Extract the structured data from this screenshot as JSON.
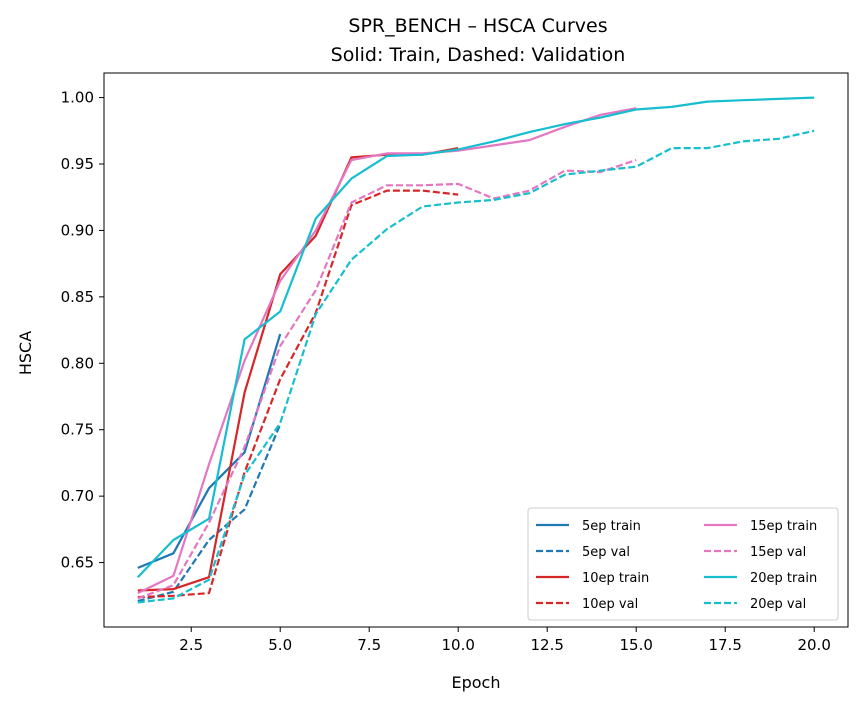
{
  "chart_data": {
    "type": "line",
    "title": "SPR_BENCH – HSCA Curves",
    "subtitle": "Solid: Train, Dashed: Validation",
    "xlabel": "Epoch",
    "ylabel": "HSCA",
    "xlim": [
      0.05,
      20.95
    ],
    "ylim": [
      0.6015,
      1.0185
    ],
    "xticks": [
      2.5,
      5.0,
      7.5,
      10.0,
      12.5,
      15.0,
      17.5,
      20.0
    ],
    "xtick_labels": [
      "2.5",
      "5.0",
      "7.5",
      "10.0",
      "12.5",
      "15.0",
      "17.5",
      "20.0"
    ],
    "yticks": [
      0.65,
      0.7,
      0.75,
      0.8,
      0.85,
      0.9,
      0.95,
      1.0
    ],
    "ytick_labels": [
      "0.65",
      "0.70",
      "0.75",
      "0.80",
      "0.85",
      "0.90",
      "0.95",
      "1.00"
    ],
    "grid": false,
    "legend_position": "bottom-right",
    "series": [
      {
        "name": "5ep train",
        "color": "#1f77b4",
        "style": "solid",
        "x": [
          1,
          2,
          3,
          4,
          5
        ],
        "y": [
          0.646,
          0.657,
          0.706,
          0.733,
          0.822
        ]
      },
      {
        "name": "5ep val",
        "color": "#1f77b4",
        "style": "dashed",
        "x": [
          1,
          2,
          3,
          4,
          5
        ],
        "y": [
          0.621,
          0.628,
          0.667,
          0.69,
          0.754
        ]
      },
      {
        "name": "10ep train",
        "color": "#d62728",
        "style": "solid",
        "x": [
          1,
          2,
          3,
          4,
          5,
          6,
          7,
          8,
          9,
          10
        ],
        "y": [
          0.629,
          0.63,
          0.639,
          0.778,
          0.867,
          0.896,
          0.955,
          0.957,
          0.957,
          0.962
        ]
      },
      {
        "name": "10ep val",
        "color": "#d62728",
        "style": "dashed",
        "x": [
          1,
          2,
          3,
          4,
          5,
          6,
          7,
          8,
          9,
          10
        ],
        "y": [
          0.624,
          0.625,
          0.627,
          0.718,
          0.788,
          0.838,
          0.919,
          0.93,
          0.93,
          0.927
        ]
      },
      {
        "name": "15ep train",
        "color": "#e377c2",
        "style": "solid",
        "x": [
          1,
          2,
          3,
          4,
          5,
          6,
          7,
          8,
          9,
          10,
          11,
          12,
          13,
          14,
          15
        ],
        "y": [
          0.627,
          0.64,
          0.724,
          0.802,
          0.862,
          0.9,
          0.953,
          0.958,
          0.958,
          0.96,
          0.964,
          0.968,
          0.978,
          0.987,
          0.992
        ]
      },
      {
        "name": "15ep val",
        "color": "#e377c2",
        "style": "dashed",
        "x": [
          1,
          2,
          3,
          4,
          5,
          6,
          7,
          8,
          9,
          10,
          11,
          12,
          13,
          14,
          15
        ],
        "y": [
          0.623,
          0.633,
          0.68,
          0.737,
          0.813,
          0.855,
          0.921,
          0.934,
          0.934,
          0.935,
          0.924,
          0.93,
          0.945,
          0.944,
          0.953
        ]
      },
      {
        "name": "20ep train",
        "color": "#17becf",
        "style": "solid",
        "x": [
          1,
          2,
          3,
          4,
          5,
          6,
          7,
          8,
          9,
          10,
          11,
          12,
          13,
          14,
          15,
          16,
          17,
          18,
          19,
          20
        ],
        "y": [
          0.639,
          0.667,
          0.683,
          0.818,
          0.839,
          0.909,
          0.939,
          0.956,
          0.957,
          0.961,
          0.967,
          0.974,
          0.98,
          0.985,
          0.991,
          0.993,
          0.997,
          0.998,
          0.999,
          1.0
        ]
      },
      {
        "name": "20ep val",
        "color": "#17becf",
        "style": "dashed",
        "x": [
          1,
          2,
          3,
          4,
          5,
          6,
          7,
          8,
          9,
          10,
          11,
          12,
          13,
          14,
          15,
          16,
          17,
          18,
          19,
          20
        ],
        "y": [
          0.62,
          0.623,
          0.637,
          0.716,
          0.755,
          0.837,
          0.878,
          0.901,
          0.918,
          0.921,
          0.923,
          0.928,
          0.942,
          0.945,
          0.948,
          0.962,
          0.962,
          0.967,
          0.969,
          0.975
        ]
      }
    ]
  }
}
